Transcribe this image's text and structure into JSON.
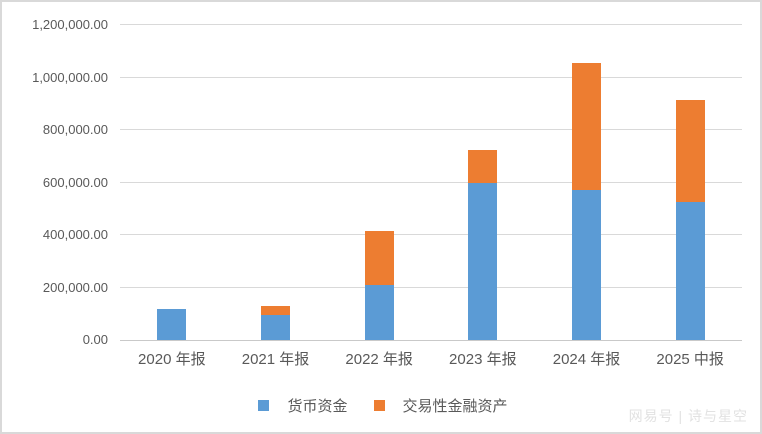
{
  "watermark": "网易号 | 诗与星空",
  "colors": {
    "series_blue": "#5B9BD5",
    "series_orange": "#ED7D31",
    "gridline": "#D9D9D9",
    "axis_text": "#595959",
    "watermark_text": "#E2E2E2",
    "background": "#FFFFFF"
  },
  "chart_data": {
    "type": "bar",
    "stacked": true,
    "title": "",
    "xlabel": "",
    "ylabel": "",
    "categories": [
      "2020 年报",
      "2021 年报",
      "2022 年报",
      "2023 年报",
      "2024 年报",
      "2025 中报"
    ],
    "series": [
      {
        "name": "货币资金",
        "color": "#5B9BD5",
        "values": [
          120000,
          95000,
          210000,
          600000,
          570000,
          525000
        ]
      },
      {
        "name": "交易性金融资产",
        "color": "#ED7D31",
        "values": [
          0,
          34000,
          205000,
          125000,
          485000,
          388000
        ]
      }
    ],
    "ylim": [
      0,
      1200000
    ],
    "ytick_step": 200000,
    "ytick_labels": [
      "0.00",
      "200,000.00",
      "400,000.00",
      "600,000.00",
      "800,000.00",
      "1,000,000.00",
      "1,200,000.00"
    ],
    "grid": true,
    "legend_position": "bottom"
  }
}
